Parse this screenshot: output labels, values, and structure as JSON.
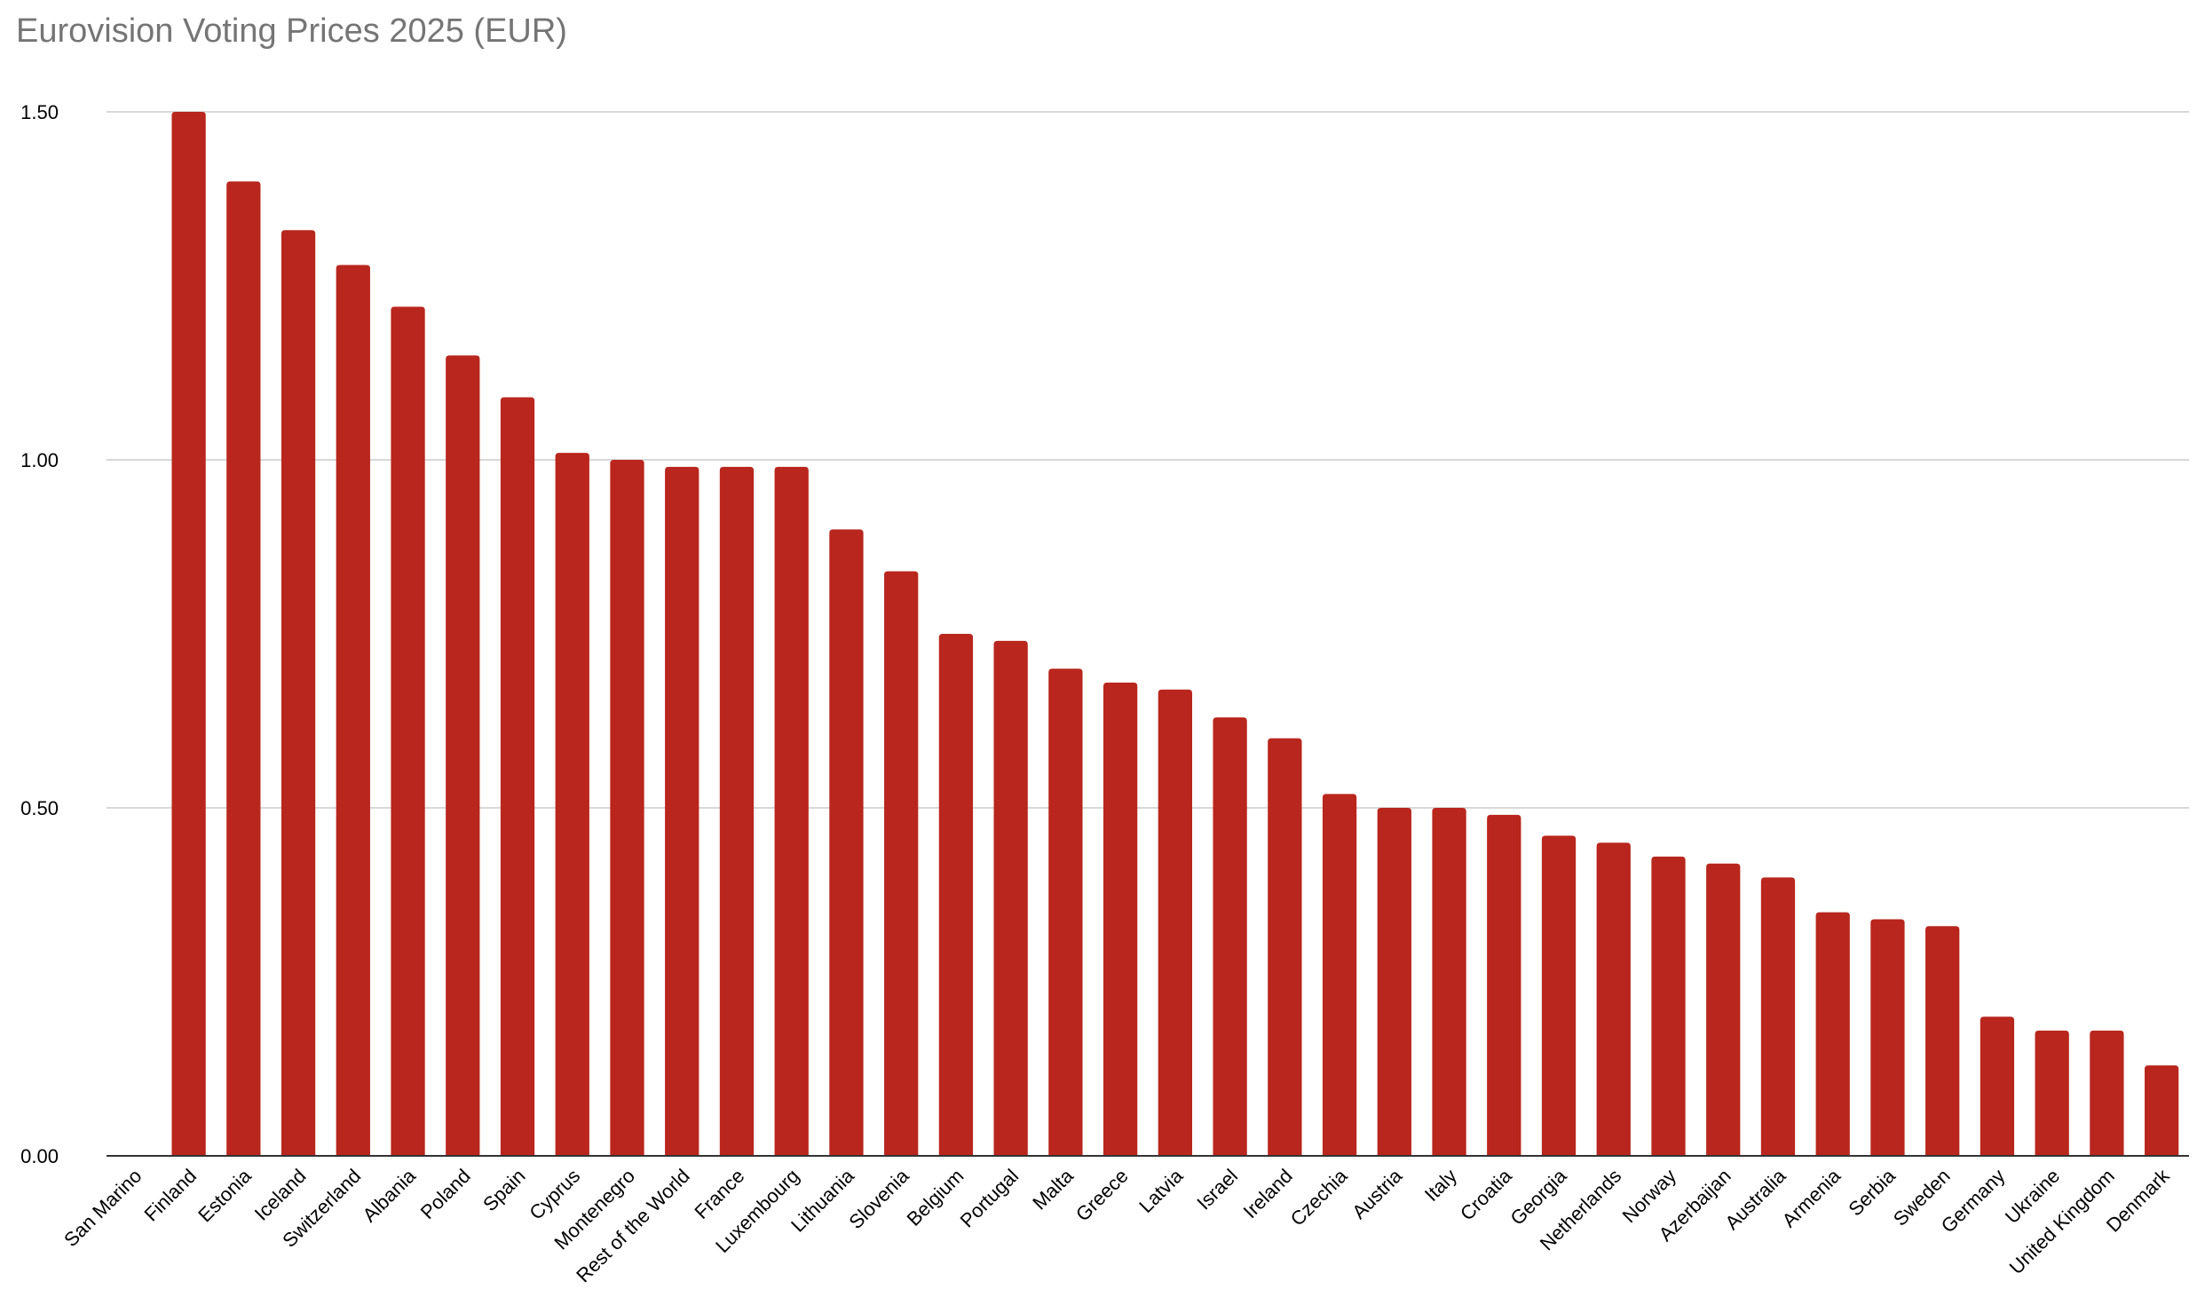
{
  "chart_data": {
    "type": "bar",
    "title": "Eurovision Voting Prices 2025 (EUR)",
    "xlabel": "",
    "ylabel": "",
    "ylim": [
      0,
      1.5
    ],
    "yticks": [
      "0.00",
      "0.50",
      "1.00",
      "1.50"
    ],
    "grid": true,
    "legend": "none",
    "bar_color": "#b9261d",
    "categories": [
      "San Marino",
      "Finland",
      "Estonia",
      "Iceland",
      "Switzerland",
      "Albania",
      "Poland",
      "Spain",
      "Cyprus",
      "Montenegro",
      "Rest of the World",
      "France",
      "Luxembourg",
      "Lithuania",
      "Slovenia",
      "Belgium",
      "Portugal",
      "Malta",
      "Greece",
      "Latvia",
      "Israel",
      "Ireland",
      "Czechia",
      "Austria",
      "Italy",
      "Croatia",
      "Georgia",
      "Netherlands",
      "Norway",
      "Azerbaijan",
      "Australia",
      "Armenia",
      "Serbia",
      "Sweden",
      "Germany",
      "Ukraine",
      "United Kingdom",
      "Denmark"
    ],
    "values": [
      0,
      1.5,
      1.4,
      1.33,
      1.28,
      1.22,
      1.15,
      1.09,
      1.01,
      1.0,
      0.99,
      0.99,
      0.99,
      0.9,
      0.84,
      0.75,
      0.74,
      0.7,
      0.68,
      0.67,
      0.63,
      0.6,
      0.52,
      0.5,
      0.5,
      0.49,
      0.46,
      0.45,
      0.43,
      0.42,
      0.4,
      0.35,
      0.34,
      0.33,
      0.2,
      0.18,
      0.18,
      0.13
    ]
  }
}
